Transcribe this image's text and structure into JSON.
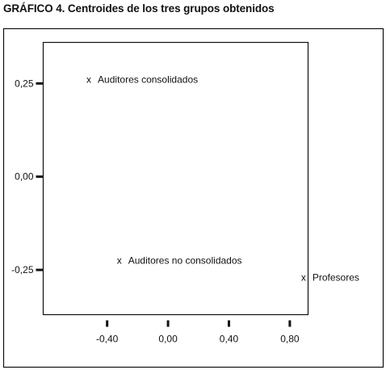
{
  "chart_data": {
    "type": "scatter",
    "title": "GRÁFICO 4. Centroides de los tres grupos obtenidos",
    "xlabel": "",
    "ylabel": "",
    "xlim": [
      -0.82,
      0.92
    ],
    "ylim": [
      -0.37,
      0.36
    ],
    "x_ticks": [
      -0.4,
      0.0,
      0.4,
      0.8
    ],
    "x_tick_labels": [
      "-0,40",
      "0,00",
      "0,40",
      "0,80"
    ],
    "y_ticks": [
      0.25,
      0.0,
      -0.25
    ],
    "y_tick_labels": [
      "0,25",
      "0,00",
      "-0,25"
    ],
    "grid": false,
    "marker": "x",
    "points": [
      {
        "x": -0.52,
        "y": 0.26,
        "label": "Auditores consolidados"
      },
      {
        "x": -0.32,
        "y": -0.225,
        "label": "Auditores no consolidados"
      },
      {
        "x": 0.89,
        "y": -0.27,
        "label": "Profesores"
      }
    ]
  }
}
